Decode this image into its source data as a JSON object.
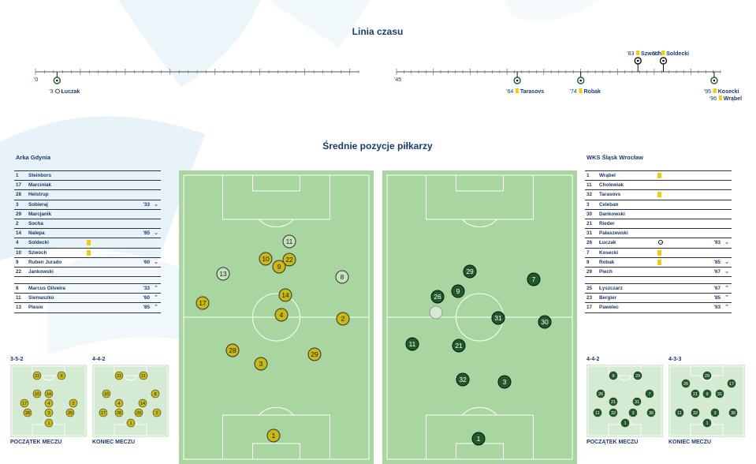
{
  "timeline": {
    "title": "Linia czasu",
    "start_first_half": "'0",
    "start_second_half": "'45",
    "events": [
      {
        "minute": 3,
        "label": "'3",
        "player": "Łuczak",
        "type": "goal",
        "side": "bottom"
      },
      {
        "minute": 64,
        "label": "'64",
        "player": "Tarasovs",
        "type": "yellow",
        "side": "bottom"
      },
      {
        "minute": 74,
        "label": "'74",
        "player": "Robak",
        "type": "yellow",
        "side": "bottom"
      },
      {
        "minute": 83,
        "label": "'83",
        "player": "Szwoch",
        "type": "yellow",
        "side": "top"
      },
      {
        "minute": 87,
        "label": "'87",
        "player": "Soldecki",
        "type": "yellow",
        "side": "top"
      },
      {
        "minute": 95,
        "label": "'95",
        "player": "Kosecki",
        "type": "yellow",
        "side": "bottom"
      },
      {
        "minute": 96,
        "label": "'96",
        "player": "Wrąbel",
        "type": "yellow",
        "side": "bottom2"
      }
    ]
  },
  "positions_title": "Średnie pozycje piłkarzy",
  "arka": {
    "name": "Arka Gdynia",
    "color": "#c8b914",
    "players": [
      {
        "num": "1",
        "name": "Steinbors"
      },
      {
        "num": "17",
        "name": "Marciniak"
      },
      {
        "num": "28",
        "name": "Helstrup"
      },
      {
        "num": "3",
        "name": "Sobieraj",
        "sub_time": "'33",
        "sub": "down"
      },
      {
        "num": "29",
        "name": "Marcjanik"
      },
      {
        "num": "2",
        "name": "Socha"
      },
      {
        "num": "14",
        "name": "Nalepa",
        "sub_time": "'85",
        "sub": "down"
      },
      {
        "num": "4",
        "name": "Soldecki",
        "card": "yellow"
      },
      {
        "num": "10",
        "name": "Szwoch",
        "card": "yellow"
      },
      {
        "num": "9",
        "name": "Ruben Jurado",
        "sub_time": "'60",
        "sub": "down"
      },
      {
        "num": "22",
        "name": "Jankowski"
      }
    ],
    "subs": [
      {
        "num": "8",
        "name": "Marcus Oliveira",
        "sub_time": "'33",
        "sub": "up"
      },
      {
        "num": "11",
        "name": "Siemaszko",
        "sub_time": "'60",
        "sub": "up"
      },
      {
        "num": "13",
        "name": "Piesio",
        "sub_time": "'85",
        "sub": "up"
      }
    ],
    "formation_start": {
      "name": "3-5-2",
      "label": "POCZĄTEK MECZU"
    },
    "formation_end": {
      "name": "4-4-2",
      "label": "KONIEC MECZU"
    }
  },
  "slask": {
    "name": "WKS Śląsk Wrocław",
    "color": "#1e5a2a",
    "players": [
      {
        "num": "1",
        "name": "Wrąbel",
        "card": "yellow"
      },
      {
        "num": "11",
        "name": "Cholewiak"
      },
      {
        "num": "32",
        "name": "Tarasovs",
        "card": "yellow"
      },
      {
        "num": "3",
        "name": "Celeban"
      },
      {
        "num": "30",
        "name": "Dankowski"
      },
      {
        "num": "21",
        "name": "Rieder"
      },
      {
        "num": "31",
        "name": "Pałaszewski"
      },
      {
        "num": "26",
        "name": "Łuczak",
        "goal": true,
        "sub_time": "'93",
        "sub": "down"
      },
      {
        "num": "7",
        "name": "Kosecki",
        "card": "yellow"
      },
      {
        "num": "9",
        "name": "Robak",
        "card": "yellow",
        "sub_time": "'85",
        "sub": "down"
      },
      {
        "num": "29",
        "name": "Piech",
        "sub_time": "'67",
        "sub": "down"
      }
    ],
    "subs": [
      {
        "num": "25",
        "name": "Łyszczarz",
        "sub_time": "'67",
        "sub": "up"
      },
      {
        "num": "23",
        "name": "Bergier",
        "sub_time": "'85",
        "sub": "up"
      },
      {
        "num": "17",
        "name": "Pawelec",
        "sub_time": "'93",
        "sub": "up"
      }
    ],
    "formation_start": {
      "name": "4-4-2",
      "label": "POCZĄTEK MECZU"
    },
    "formation_end": {
      "name": "4-3-3",
      "label": "KONIEC MECZU"
    }
  }
}
